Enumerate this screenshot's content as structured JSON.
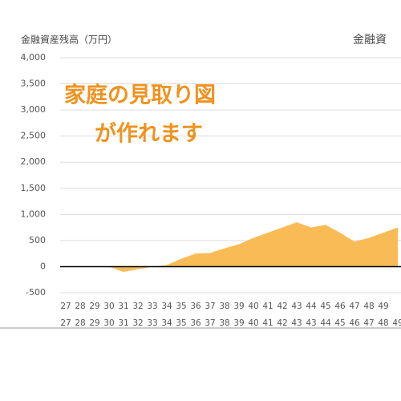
{
  "chart_data": {
    "type": "area",
    "title": "金融資産残高（万円）",
    "title_right": "金融資",
    "annotation": [
      "家庭の見取り図",
      "が作れます"
    ],
    "categories": [
      "27",
      "28",
      "29",
      "30",
      "31",
      "32",
      "33",
      "34",
      "35",
      "36",
      "37",
      "38",
      "39",
      "40",
      "41",
      "42",
      "43",
      "44",
      "45",
      "46",
      "47",
      "48",
      "49",
      null
    ],
    "categories_row2": [
      "27",
      "28",
      "29",
      "30",
      "31",
      "32",
      "33",
      "34",
      "35",
      "36",
      "37",
      "38",
      "39",
      "40",
      "41",
      "42",
      "43",
      "43",
      "44",
      "45",
      "46",
      "47",
      "48",
      "49"
    ],
    "values": [
      0,
      0,
      0,
      0,
      -100,
      -50,
      0,
      30,
      150,
      250,
      260,
      350,
      430,
      550,
      650,
      750,
      850,
      750,
      800,
      650,
      480,
      550,
      650,
      750
    ],
    "color": "#f9bb55",
    "ylim": [
      -500,
      4000
    ],
    "yticks": [
      -500,
      0,
      500,
      {
        "value": 1000,
        "label": "1,000"
      },
      {
        "value": 1500,
        "label": "1,500"
      },
      {
        "value": 2000,
        "label": "2,000"
      },
      {
        "value": 2500,
        "label": "2,500"
      },
      {
        "value": 3000,
        "label": "3,000"
      },
      {
        "value": 3500,
        "label": "3,500"
      },
      {
        "value": 4000,
        "label": "4,000"
      }
    ],
    "negative_tick_color": "#e03030",
    "grid": true
  }
}
